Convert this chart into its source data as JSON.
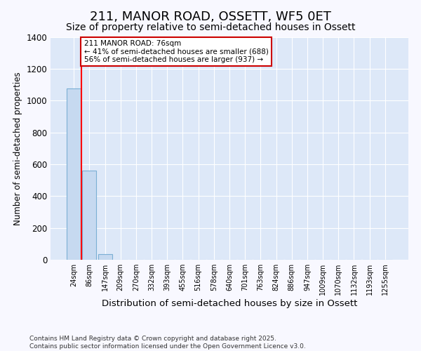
{
  "title": "211, MANOR ROAD, OSSETT, WF5 0ET",
  "subtitle": "Size of property relative to semi-detached houses in Ossett",
  "xlabel": "Distribution of semi-detached houses by size in Ossett",
  "ylabel": "Number of semi-detached properties",
  "categories": [
    "24sqm",
    "86sqm",
    "147sqm",
    "209sqm",
    "270sqm",
    "332sqm",
    "393sqm",
    "455sqm",
    "516sqm",
    "578sqm",
    "640sqm",
    "701sqm",
    "763sqm",
    "824sqm",
    "886sqm",
    "947sqm",
    "1009sqm",
    "1070sqm",
    "1132sqm",
    "1193sqm",
    "1255sqm"
  ],
  "values": [
    1075,
    560,
    35,
    0,
    0,
    0,
    0,
    0,
    0,
    0,
    0,
    0,
    0,
    0,
    0,
    0,
    0,
    0,
    0,
    0,
    0
  ],
  "bar_color": "#c6d9f0",
  "bar_edge_color": "#7bafd4",
  "red_line_x": 0.5,
  "annotation_text": "211 MANOR ROAD: 76sqm\n← 41% of semi-detached houses are smaller (688)\n56% of semi-detached houses are larger (937) →",
  "ylim": [
    0,
    1400
  ],
  "yticks": [
    0,
    200,
    400,
    600,
    800,
    1000,
    1200,
    1400
  ],
  "footer_line1": "Contains HM Land Registry data © Crown copyright and database right 2025.",
  "footer_line2": "Contains public sector information licensed under the Open Government Licence v3.0.",
  "fig_bg_color": "#f8f8ff",
  "plot_bg_color": "#dde8f8",
  "grid_color": "#ffffff",
  "annotation_box_facecolor": "#ffffff",
  "annotation_box_edgecolor": "#cc0000"
}
